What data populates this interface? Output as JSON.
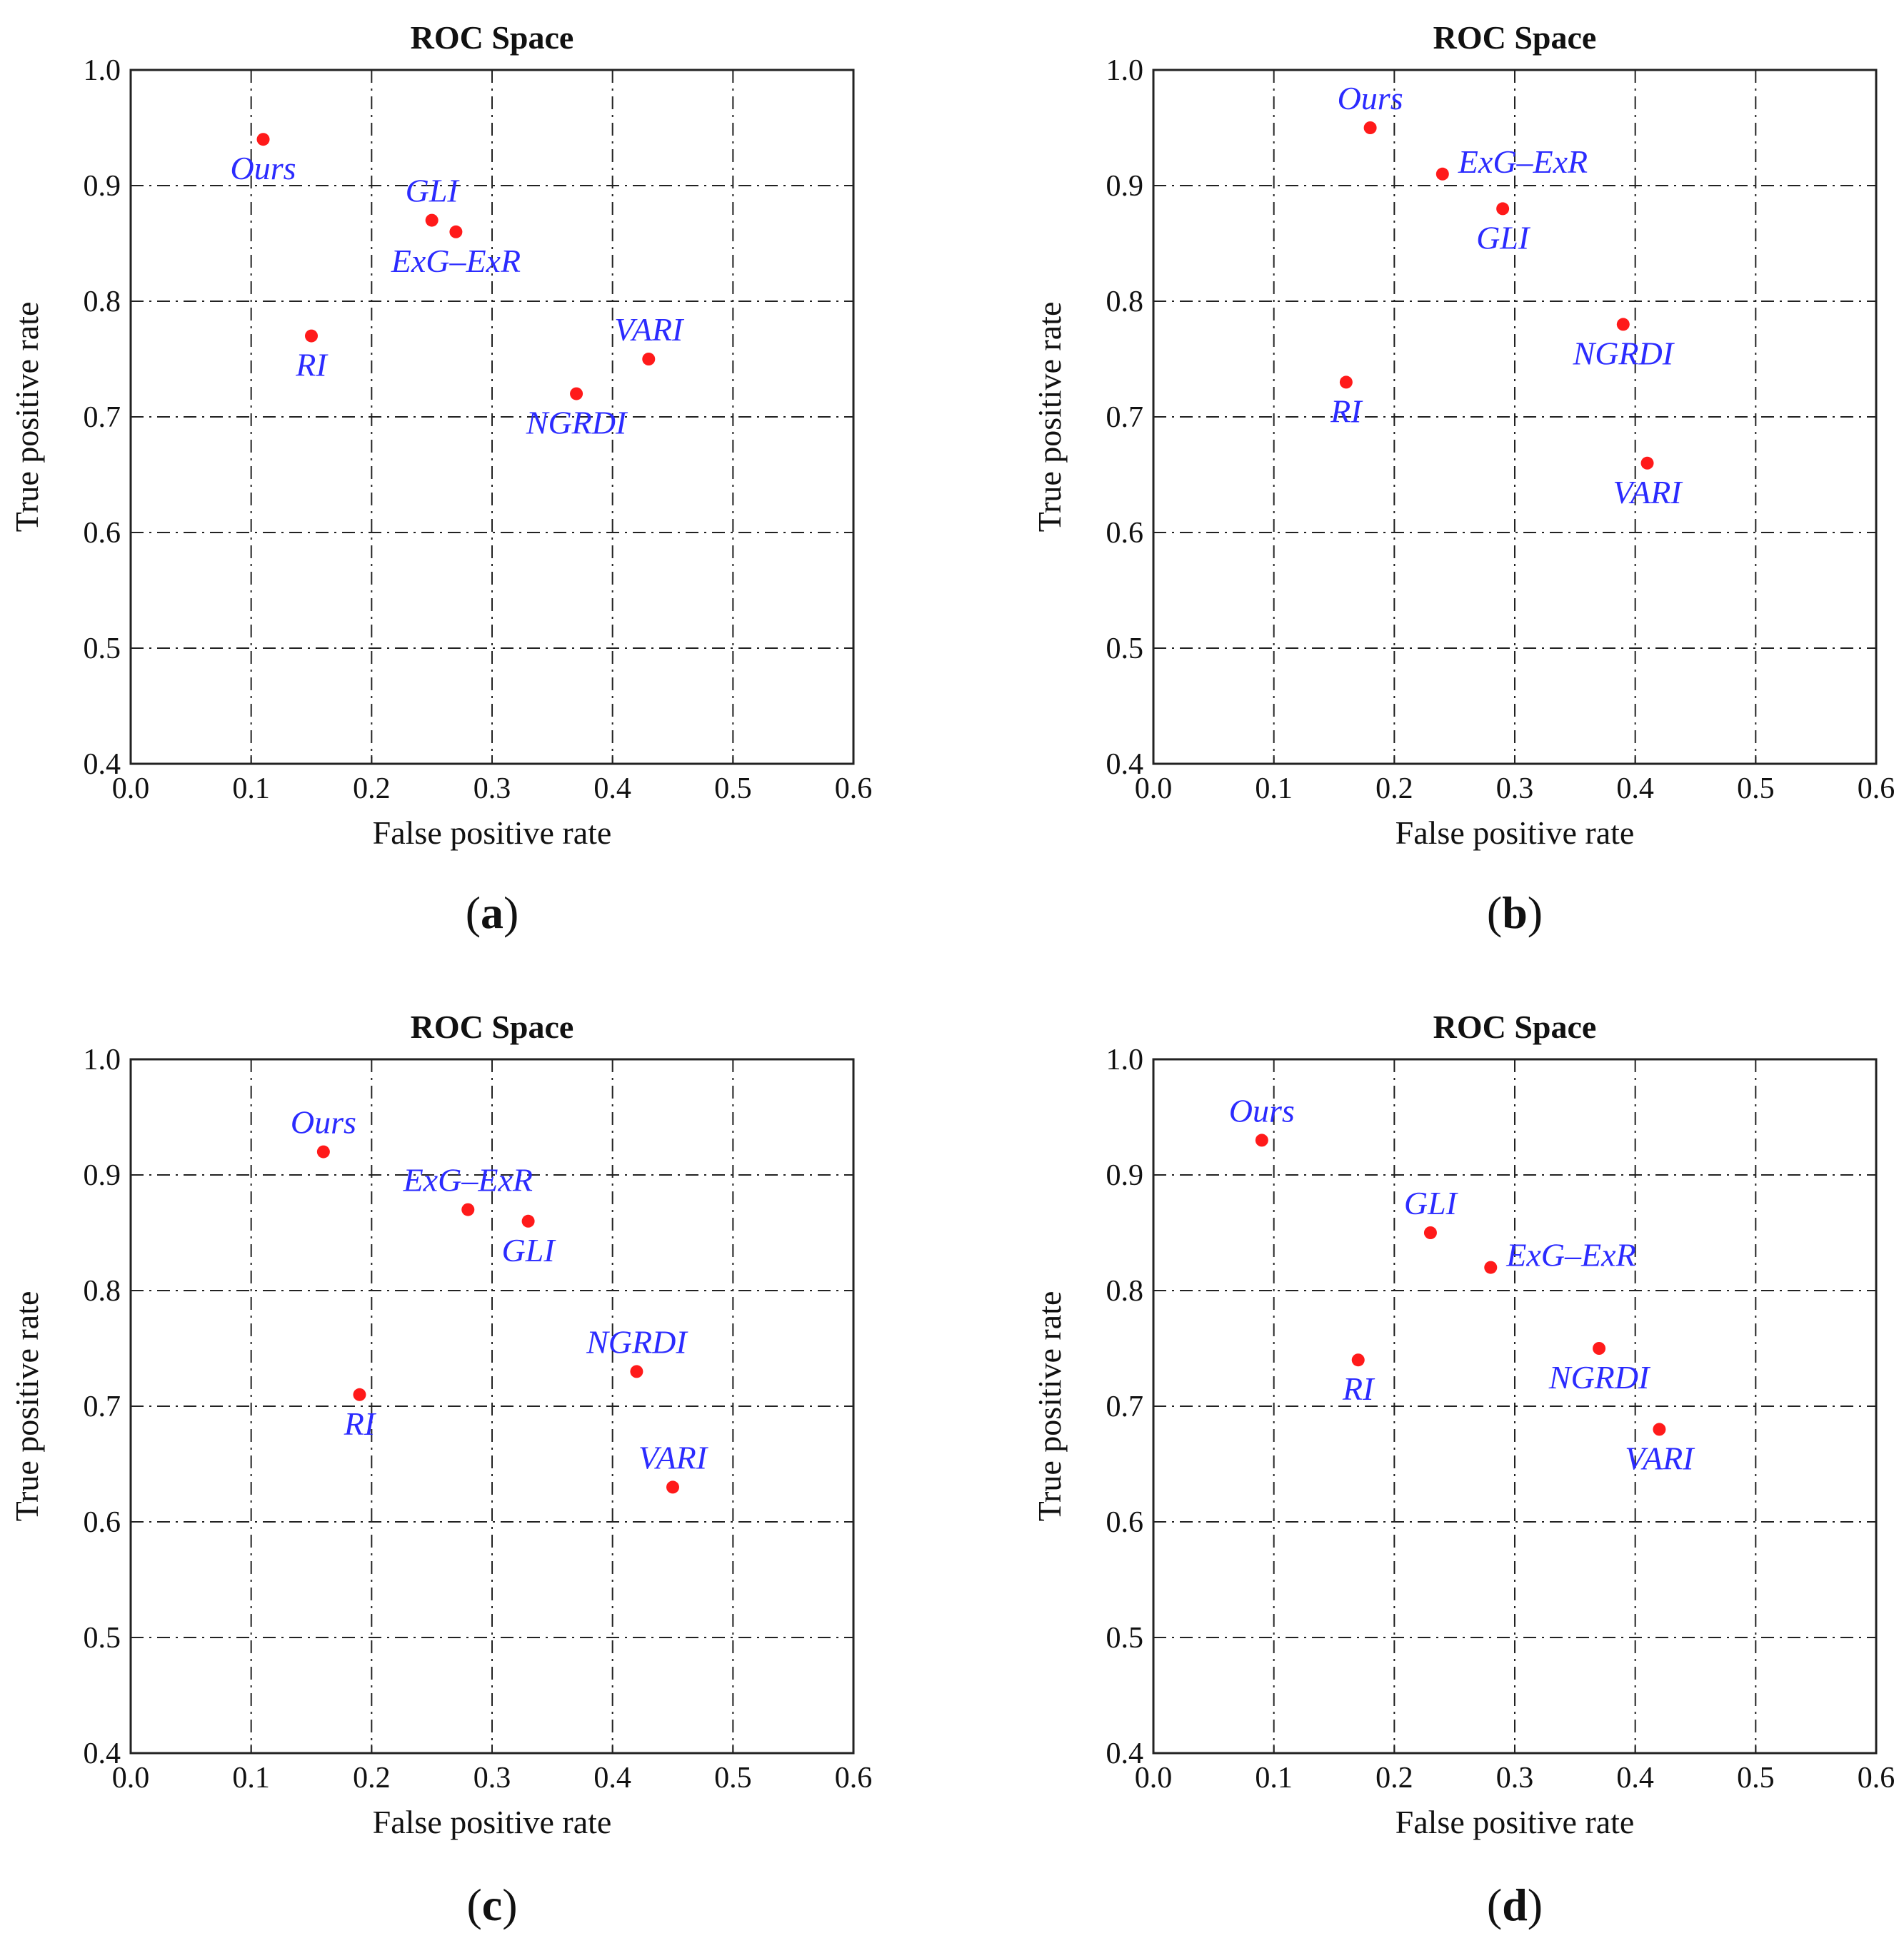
{
  "chart_data": [
    {
      "type": "scatter",
      "title": "ROC Space",
      "xlabel": "False positive rate",
      "ylabel": "True positive rate",
      "xlim": [
        0.0,
        0.6
      ],
      "ylim": [
        0.4,
        1.0
      ],
      "xticks": [
        "0.0",
        "0.1",
        "0.2",
        "0.3",
        "0.4",
        "0.5",
        "0.6"
      ],
      "yticks": [
        "0.4",
        "0.5",
        "0.6",
        "0.7",
        "0.8",
        "0.9",
        "1.0"
      ],
      "grid": true,
      "caption_open": "(",
      "caption_letter": "a",
      "caption_close": ")",
      "points": [
        {
          "label": "Ours",
          "x": 0.11,
          "y": 0.94,
          "label_pos": "below"
        },
        {
          "label": "GLI",
          "x": 0.25,
          "y": 0.87,
          "label_pos": "above"
        },
        {
          "label": "ExG–ExR",
          "x": 0.27,
          "y": 0.86,
          "label_pos": "below"
        },
        {
          "label": "RI",
          "x": 0.15,
          "y": 0.77,
          "label_pos": "below"
        },
        {
          "label": "VARI",
          "x": 0.43,
          "y": 0.75,
          "label_pos": "above"
        },
        {
          "label": "NGRDI",
          "x": 0.37,
          "y": 0.72,
          "label_pos": "below"
        }
      ]
    },
    {
      "type": "scatter",
      "title": "ROC Space",
      "xlabel": "False positive rate",
      "ylabel": "True positive rate",
      "xlim": [
        0.0,
        0.6
      ],
      "ylim": [
        0.4,
        1.0
      ],
      "xticks": [
        "0.0",
        "0.1",
        "0.2",
        "0.3",
        "0.4",
        "0.5",
        "0.6"
      ],
      "yticks": [
        "0.4",
        "0.5",
        "0.6",
        "0.7",
        "0.8",
        "0.9",
        "1.0"
      ],
      "grid": true,
      "caption_open": "(",
      "caption_letter": "b",
      "caption_close": ")",
      "points": [
        {
          "label": "Ours",
          "x": 0.18,
          "y": 0.95,
          "label_pos": "above"
        },
        {
          "label": "ExG–ExR",
          "x": 0.24,
          "y": 0.91,
          "label_pos": "right"
        },
        {
          "label": "GLI",
          "x": 0.29,
          "y": 0.88,
          "label_pos": "below"
        },
        {
          "label": "NGRDI",
          "x": 0.39,
          "y": 0.78,
          "label_pos": "below"
        },
        {
          "label": "RI",
          "x": 0.16,
          "y": 0.73,
          "label_pos": "below"
        },
        {
          "label": "VARI",
          "x": 0.41,
          "y": 0.66,
          "label_pos": "below"
        }
      ]
    },
    {
      "type": "scatter",
      "title": "ROC Space",
      "xlabel": "False positive rate",
      "ylabel": "True positive rate",
      "xlim": [
        0.0,
        0.6
      ],
      "ylim": [
        0.4,
        1.0
      ],
      "xticks": [
        "0.0",
        "0.1",
        "0.2",
        "0.3",
        "0.4",
        "0.5",
        "0.6"
      ],
      "yticks": [
        "0.4",
        "0.5",
        "0.6",
        "0.7",
        "0.8",
        "0.9",
        "1.0"
      ],
      "grid": true,
      "caption_open": "(",
      "caption_letter": "c",
      "caption_close": ")",
      "points": [
        {
          "label": "Ours",
          "x": 0.16,
          "y": 0.92,
          "label_pos": "above"
        },
        {
          "label": "ExG–ExR",
          "x": 0.28,
          "y": 0.87,
          "label_pos": "above"
        },
        {
          "label": "GLI",
          "x": 0.33,
          "y": 0.86,
          "label_pos": "below"
        },
        {
          "label": "NGRDI",
          "x": 0.42,
          "y": 0.73,
          "label_pos": "above"
        },
        {
          "label": "RI",
          "x": 0.19,
          "y": 0.71,
          "label_pos": "below"
        },
        {
          "label": "VARI",
          "x": 0.45,
          "y": 0.63,
          "label_pos": "above"
        }
      ]
    },
    {
      "type": "scatter",
      "title": "ROC Space",
      "xlabel": "False positive rate",
      "ylabel": "True positive rate",
      "xlim": [
        0.0,
        0.6
      ],
      "ylim": [
        0.4,
        1.0
      ],
      "xticks": [
        "0.0",
        "0.1",
        "0.2",
        "0.3",
        "0.4",
        "0.5",
        "0.6"
      ],
      "yticks": [
        "0.4",
        "0.5",
        "0.6",
        "0.7",
        "0.8",
        "0.9",
        "1.0"
      ],
      "grid": true,
      "caption_open": "(",
      "caption_letter": "d",
      "caption_close": ")",
      "points": [
        {
          "label": "Ours",
          "x": 0.09,
          "y": 0.93,
          "label_pos": "above"
        },
        {
          "label": "GLI",
          "x": 0.23,
          "y": 0.85,
          "label_pos": "above"
        },
        {
          "label": "ExG–ExR",
          "x": 0.28,
          "y": 0.82,
          "label_pos": "right"
        },
        {
          "label": "NGRDI",
          "x": 0.37,
          "y": 0.75,
          "label_pos": "below"
        },
        {
          "label": "RI",
          "x": 0.17,
          "y": 0.74,
          "label_pos": "below"
        },
        {
          "label": "VARI",
          "x": 0.42,
          "y": 0.68,
          "label_pos": "below"
        }
      ]
    }
  ],
  "colors": {
    "point": "#ff1a1a",
    "label": "#2b2bff",
    "axis": "#222222"
  }
}
